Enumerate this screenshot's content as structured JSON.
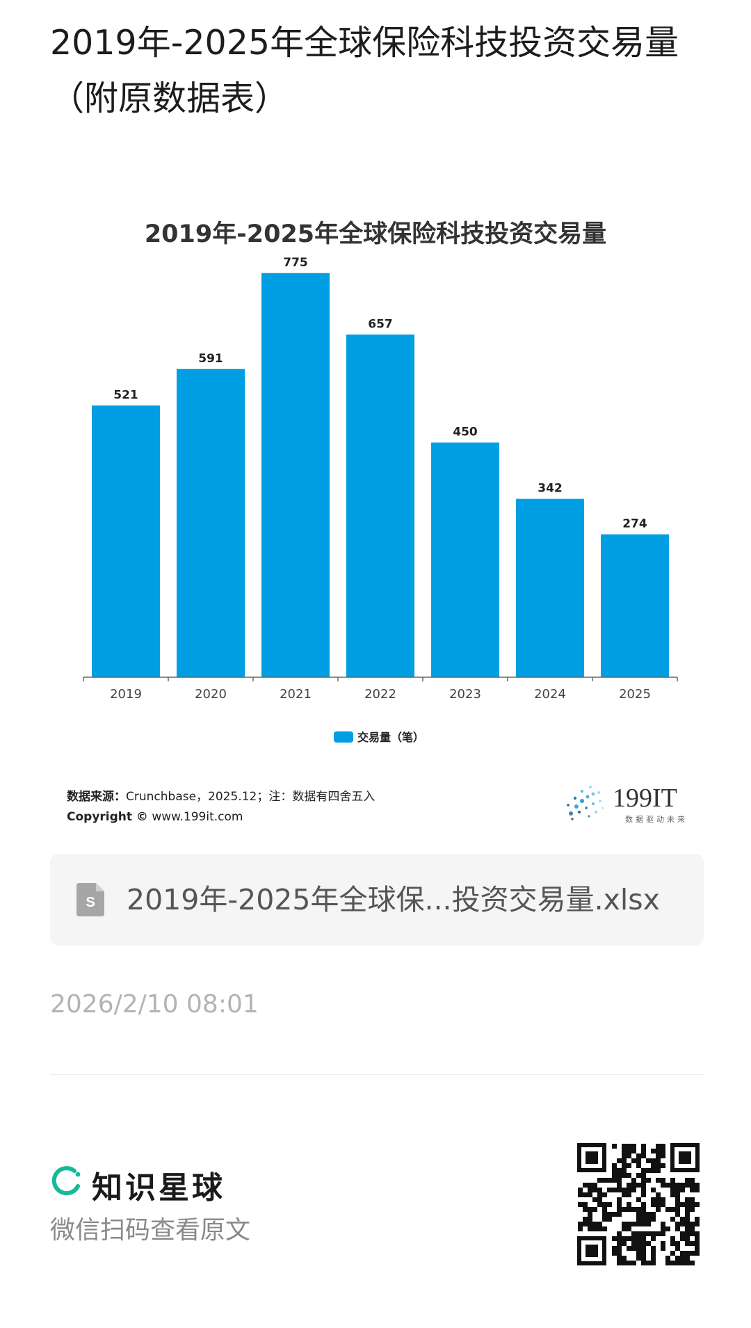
{
  "post": {
    "title": "2019年-2025年全球保险科技投资交易量（附原数据表）"
  },
  "chart_data": {
    "type": "bar",
    "title": "2019年-2025年全球保险科技投资交易量",
    "categories": [
      "2019",
      "2020",
      "2021",
      "2022",
      "2023",
      "2024",
      "2025"
    ],
    "series": [
      {
        "name": "交易量（笔）",
        "values": [
          521,
          591,
          775,
          657,
          450,
          342,
          274
        ],
        "color": "#009fe3"
      }
    ],
    "ylim": [
      0,
      800
    ],
    "grid": false,
    "legend_position": "bottom-center",
    "data_labels": true
  },
  "source": {
    "label": "数据来源：",
    "text": "Crunchbase，2025.12；注：数据有四舍五入",
    "copyright_label": "Copyright ©",
    "copyright_site": "www.199it.com"
  },
  "brand": {
    "name": "199IT",
    "slogan": "数据驱动未来",
    "icon": "dandelion-logo-icon"
  },
  "attachment": {
    "icon": "spreadsheet-file-icon",
    "file_name": "2019年-2025年全球保...投资交易量.xlsx"
  },
  "meta": {
    "timestamp": "2026/2/10 08:01"
  },
  "footer": {
    "platform_name": "知识星球",
    "scan_hint": "微信扫码查看原文",
    "accent_color": "#16b998"
  }
}
